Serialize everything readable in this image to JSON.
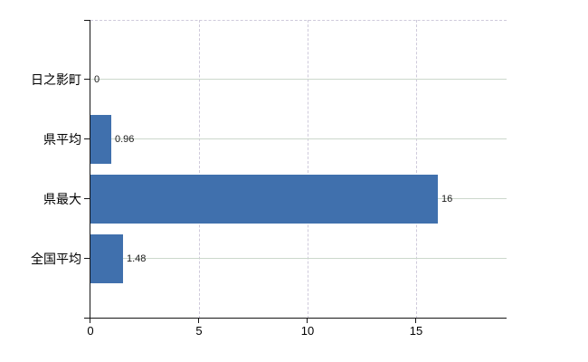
{
  "chart_data": {
    "type": "bar",
    "orientation": "horizontal",
    "title": "",
    "xlabel": "",
    "ylabel": "",
    "categories": [
      "日之影町",
      "県平均",
      "県最大",
      "全国平均"
    ],
    "values": [
      0,
      0.96,
      16,
      1.48
    ],
    "value_labels": [
      "0",
      "0.96",
      "16",
      "1.48"
    ],
    "x_ticks": [
      0,
      5,
      10,
      15
    ],
    "x_tick_labels": [
      "0",
      "5",
      "10",
      "15"
    ],
    "xlim": [
      0,
      19.2
    ],
    "grid": {
      "horizontal": "solid line at each category center",
      "vertical": "dashed lines at ticks 5, 10, 15",
      "top_border": "dashed"
    },
    "legend": null,
    "colors": {
      "bar": "#4070ad",
      "horizontal_grid": "#ccd8cc",
      "vertical_grid": "#cfcadb",
      "axis": "#161616",
      "text": "#000000",
      "background": "#ffffff"
    }
  }
}
